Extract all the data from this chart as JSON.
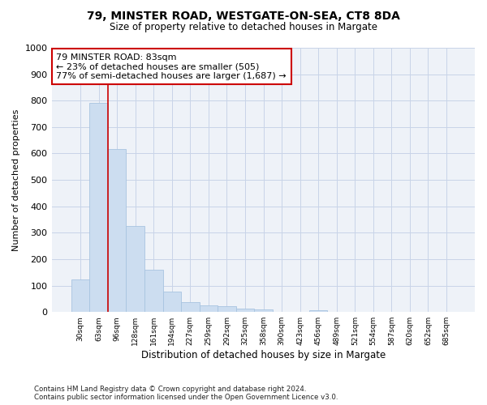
{
  "title1": "79, MINSTER ROAD, WESTGATE-ON-SEA, CT8 8DA",
  "title2": "Size of property relative to detached houses in Margate",
  "xlabel": "Distribution of detached houses by size in Margate",
  "ylabel": "Number of detached properties",
  "bar_labels": [
    "30sqm",
    "63sqm",
    "96sqm",
    "128sqm",
    "161sqm",
    "194sqm",
    "227sqm",
    "259sqm",
    "292sqm",
    "325sqm",
    "358sqm",
    "390sqm",
    "423sqm",
    "456sqm",
    "489sqm",
    "521sqm",
    "554sqm",
    "587sqm",
    "620sqm",
    "652sqm",
    "685sqm"
  ],
  "bar_values": [
    122,
    793,
    617,
    327,
    160,
    78,
    37,
    25,
    22,
    14,
    9,
    0,
    0,
    8,
    0,
    0,
    0,
    0,
    0,
    0,
    0
  ],
  "bar_color": "#ccddf0",
  "bar_edgecolor": "#a8c4e0",
  "vline_color": "#cc0000",
  "annotation_text": "79 MINSTER ROAD: 83sqm\n← 23% of detached houses are smaller (505)\n77% of semi-detached houses are larger (1,687) →",
  "annotation_box_color": "#ffffff",
  "annotation_box_edgecolor": "#cc0000",
  "ylim": [
    0,
    1000
  ],
  "yticks": [
    0,
    100,
    200,
    300,
    400,
    500,
    600,
    700,
    800,
    900,
    1000
  ],
  "footer": "Contains HM Land Registry data © Crown copyright and database right 2024.\nContains public sector information licensed under the Open Government Licence v3.0.",
  "bg_color": "#ffffff",
  "plot_bg_color": "#eef2f8",
  "grid_color": "#c8d4e8"
}
